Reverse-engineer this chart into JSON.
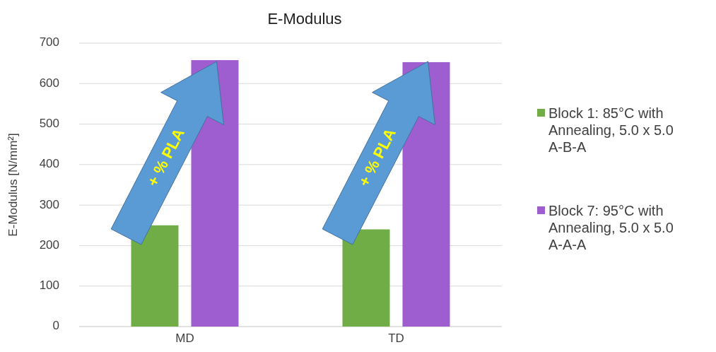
{
  "chart_data": {
    "type": "bar",
    "title": "E-Modulus",
    "ylabel": "E-Modulus [N/mm²]",
    "categories": [
      "MD",
      "TD"
    ],
    "series": [
      {
        "name": "Block 1: 85°C with Annealing, 5.0 x 5.0 A-B-A",
        "color": "#70ad47",
        "values": [
          250,
          240
        ]
      },
      {
        "name": "Block 7: 95°C with Annealing, 5.0 x 5.0 A-A-A",
        "color": "#9e5ecf",
        "values": [
          658,
          653
        ]
      }
    ],
    "ylim": [
      0,
      700
    ],
    "yticks": [
      0,
      100,
      200,
      300,
      400,
      500,
      600,
      700
    ],
    "grid": "y",
    "legend": "right",
    "annotations": [
      "+ % PLA",
      "+ % PLA"
    ]
  }
}
